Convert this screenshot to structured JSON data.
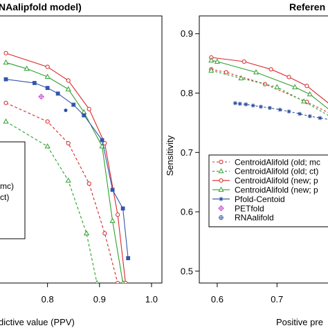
{
  "chart_data": [
    {
      "type": "line",
      "title": "NAalipfold model)",
      "xlabel": "dictive value (PPV)",
      "ylabel": "",
      "xlim": [
        0.706,
        1.02
      ],
      "ylim": [
        0.5,
        0.93
      ],
      "x_ticks": [
        "0.8",
        "0.9",
        "1.0"
      ],
      "legend_fragments": [
        "mc)",
        "ct)"
      ],
      "series": [
        {
          "color": "#d62728",
          "dash": "none",
          "marker": "circle",
          "x": [
            0.72,
            0.8,
            0.84,
            0.88,
            0.91,
            0.935,
            0.95
          ],
          "y": [
            0.87,
            0.848,
            0.826,
            0.78,
            0.725,
            0.61,
            0.5
          ]
        },
        {
          "color": "#2ca02c",
          "dash": "none",
          "marker": "triangle",
          "x": [
            0.72,
            0.76,
            0.8,
            0.84,
            0.87,
            0.905,
            0.925,
            0.945
          ],
          "y": [
            0.855,
            0.845,
            0.832,
            0.812,
            0.775,
            0.72,
            0.6,
            0.5
          ]
        },
        {
          "color": "#3355aa",
          "dash": "none",
          "marker": "square",
          "x": [
            0.72,
            0.775,
            0.8,
            0.82,
            0.85,
            0.87,
            0.905,
            0.925,
            0.945,
            0.955
          ],
          "y": [
            0.828,
            0.822,
            0.814,
            0.805,
            0.787,
            0.77,
            0.73,
            0.65,
            0.62,
            0.54
          ]
        },
        {
          "color": "#d62728",
          "dash": "4,3",
          "marker": "circle",
          "x": [
            0.72,
            0.8,
            0.84,
            0.88,
            0.91,
            0.935
          ],
          "y": [
            0.79,
            0.76,
            0.725,
            0.66,
            0.58,
            0.5
          ]
        },
        {
          "color": "#2ca02c",
          "dash": "4,3",
          "marker": "triangle",
          "x": [
            0.72,
            0.8,
            0.84,
            0.875,
            0.895
          ],
          "y": [
            0.76,
            0.72,
            0.665,
            0.58,
            0.5
          ]
        }
      ],
      "points": [
        {
          "x": 0.788,
          "y": 0.8,
          "color": "#cc44cc",
          "marker": "diamond"
        },
        {
          "x": 0.835,
          "y": 0.778,
          "color": "#2d4fa0",
          "marker": "dot"
        }
      ]
    },
    {
      "type": "line",
      "title": "Referen",
      "xlabel": "Positive pre",
      "ylabel": "Sensitivity",
      "xlim": [
        0.57,
        0.79
      ],
      "ylim": [
        0.48,
        0.93
      ],
      "x_ticks": [
        "0.6",
        "0.7"
      ],
      "y_ticks": [
        "0.5",
        "0.6",
        "0.7",
        "0.8",
        "0.9"
      ],
      "legend": [
        {
          "label": "CentroidAlifold (old; mc",
          "color": "#d62728",
          "dash": "3,3",
          "marker": "circle"
        },
        {
          "label": "CentroidAlifold (old; ct)",
          "color": "#2ca02c",
          "dash": "3,3",
          "marker": "triangle"
        },
        {
          "label": "CentroidAlifold (new; p",
          "color": "#d62728",
          "dash": "none",
          "marker": "circle"
        },
        {
          "label": "CentroidAlifold (new; p",
          "color": "#2ca02c",
          "dash": "none",
          "marker": "triangle"
        },
        {
          "label": "Pfold-Centoid",
          "color": "#2d4fa0",
          "dash": "none",
          "marker": "star"
        },
        {
          "label": "PETfold",
          "color": "#cc44cc",
          "dash": "none",
          "marker": "diamond"
        },
        {
          "label": "RNAalifold",
          "color": "#2d4fa0",
          "dash": "none",
          "marker": "crossdot"
        }
      ],
      "series": [
        {
          "color": "#d62728",
          "dash": "none",
          "marker": "circle",
          "x": [
            0.59,
            0.645,
            0.69,
            0.72,
            0.75,
            0.79
          ],
          "y": [
            0.86,
            0.853,
            0.84,
            0.827,
            0.812,
            0.78
          ]
        },
        {
          "color": "#2ca02c",
          "dash": "none",
          "marker": "triangle",
          "x": [
            0.59,
            0.6,
            0.665,
            0.73,
            0.755,
            0.79
          ],
          "y": [
            0.855,
            0.853,
            0.835,
            0.81,
            0.798,
            0.77
          ]
        },
        {
          "color": "#d62728",
          "dash": "3,3",
          "marker": "circle",
          "x": [
            0.59,
            0.615,
            0.68,
            0.75,
            0.79
          ],
          "y": [
            0.84,
            0.835,
            0.815,
            0.785,
            0.765
          ]
        },
        {
          "color": "#2ca02c",
          "dash": "3,3",
          "marker": "triangle",
          "x": [
            0.59,
            0.64,
            0.7,
            0.745,
            0.79
          ],
          "y": [
            0.838,
            0.825,
            0.81,
            0.786,
            0.76
          ]
        },
        {
          "color": "#2d4fa0",
          "dash": "3,3",
          "marker": "star",
          "x": [
            0.63,
            0.638,
            0.648,
            0.66,
            0.673,
            0.688,
            0.705,
            0.72,
            0.738,
            0.755,
            0.772,
            0.79
          ],
          "y": [
            0.783,
            0.782,
            0.781,
            0.779,
            0.777,
            0.775,
            0.772,
            0.769,
            0.765,
            0.761,
            0.758,
            0.755
          ]
        }
      ],
      "points": []
    }
  ]
}
